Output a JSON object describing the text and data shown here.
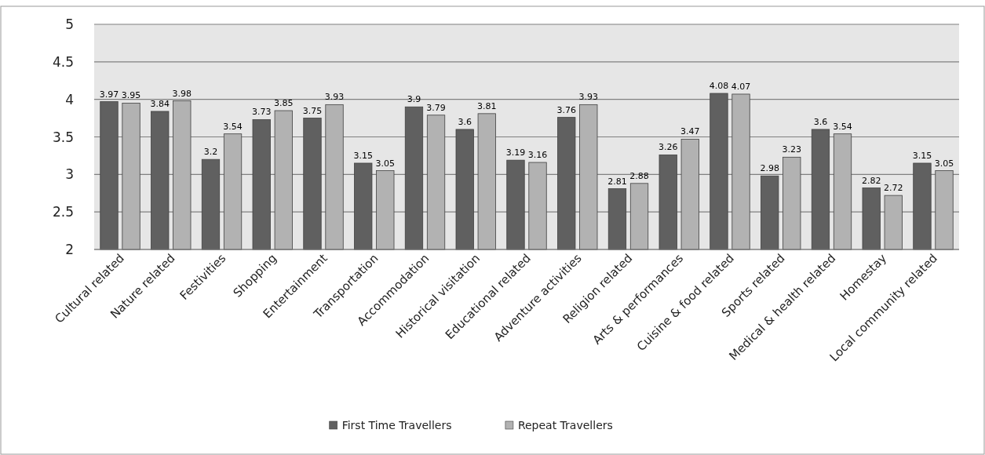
{
  "chart_data": {
    "type": "bar",
    "categories": [
      "Cultural related",
      "Nature related",
      "Festivities",
      "Shopping",
      "Entertainment",
      "Transportation",
      "Accommodation",
      "Historical visitation",
      "Educational related",
      "Adventure activities",
      "Religion related",
      "Arts & performances",
      "Cuisine & food related",
      "Sports related",
      "Medical & health related",
      "Homestay",
      "Local community related"
    ],
    "series": [
      {
        "name": "First Time Travellers",
        "color": "#606060",
        "values": [
          3.97,
          3.84,
          3.2,
          3.73,
          3.75,
          3.15,
          3.9,
          3.6,
          3.19,
          3.76,
          2.81,
          3.26,
          4.08,
          2.98,
          3.6,
          2.82,
          3.15
        ]
      },
      {
        "name": "Repeat Travellers",
        "color": "#b2b2b2",
        "values": [
          3.95,
          3.98,
          3.54,
          3.85,
          3.93,
          3.05,
          3.79,
          3.81,
          3.16,
          3.93,
          2.88,
          3.47,
          4.07,
          3.23,
          3.54,
          2.72,
          3.05
        ]
      }
    ],
    "ylim": [
      2,
      5
    ],
    "yticks": [
      2,
      2.5,
      3,
      3.5,
      4,
      4.5,
      5
    ],
    "grid": "y",
    "data_labels": true,
    "legend": "bottom"
  }
}
